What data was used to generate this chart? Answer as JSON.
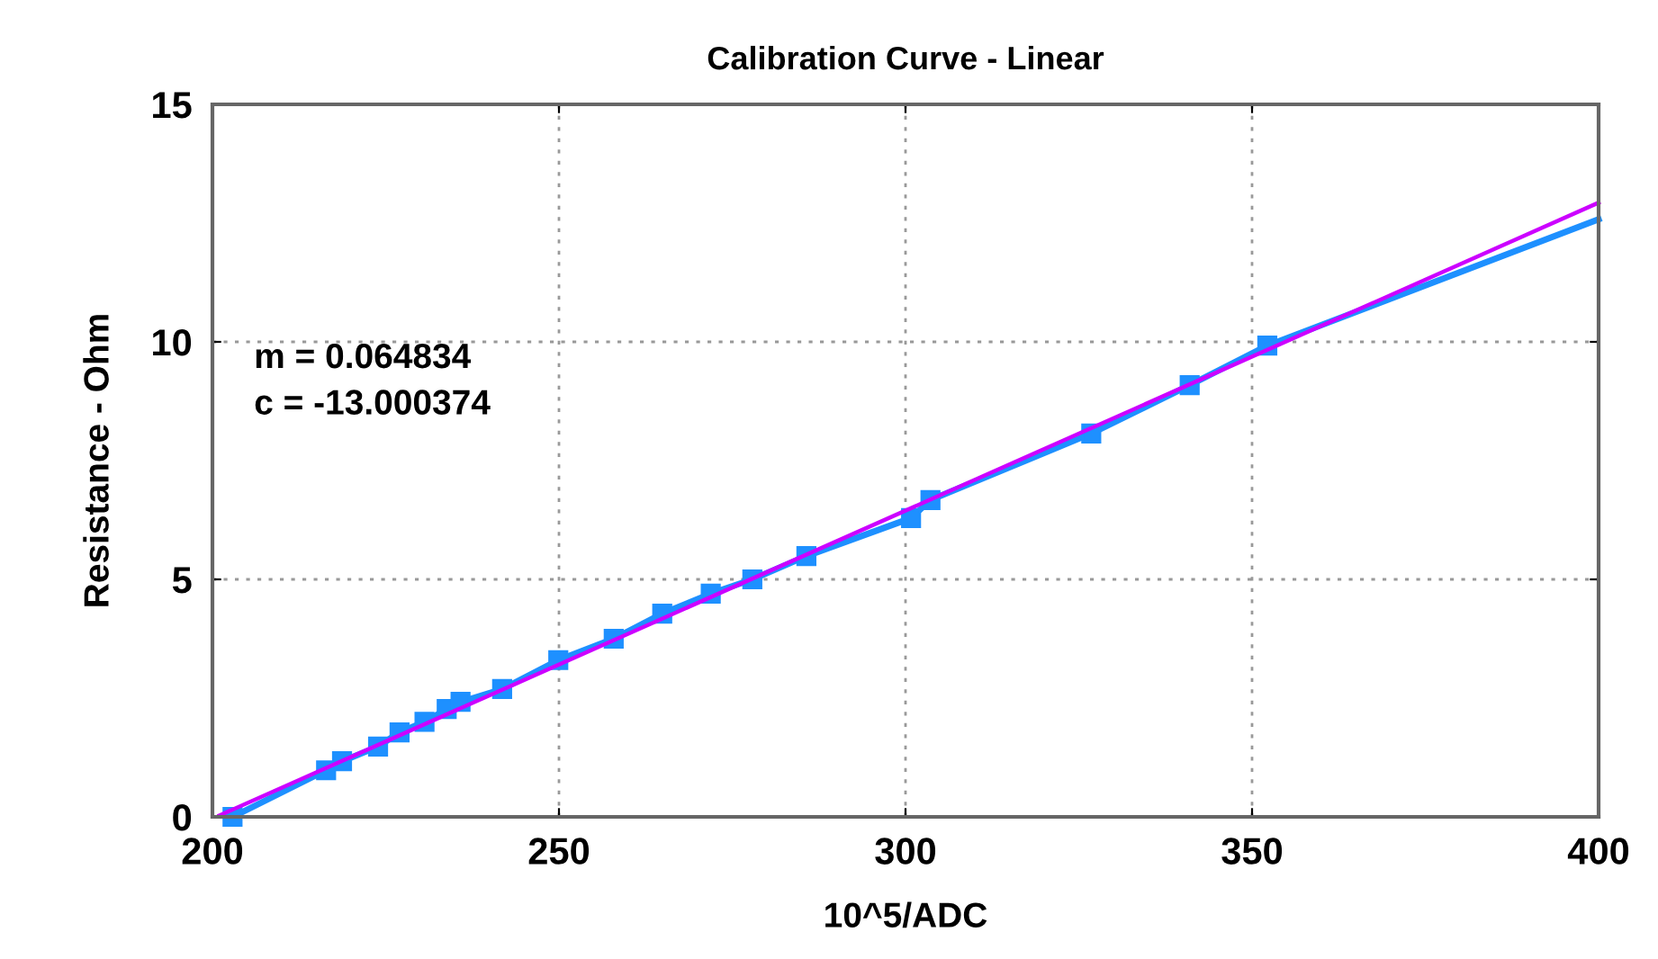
{
  "chart_data": {
    "type": "line",
    "title": "Calibration Curve - Linear",
    "xlabel": "10^5/ADC",
    "ylabel": "Resistance - Ohm",
    "xlim": [
      200,
      400
    ],
    "ylim": [
      0,
      15
    ],
    "xticks": [
      200,
      250,
      300,
      350,
      400
    ],
    "yticks": [
      0,
      5,
      10,
      15
    ],
    "grid": true,
    "legend": false,
    "annotations": [
      "m = 0.064834",
      "c = -13.000374"
    ],
    "series": [
      {
        "color": "#1e90ff",
        "marker": "square",
        "x": [
          202.9,
          216.4,
          218.7,
          223.9,
          227.0,
          230.6,
          233.8,
          235.8,
          241.8,
          249.9,
          257.9,
          264.9,
          271.9,
          277.9,
          285.7,
          300.8,
          303.6,
          326.8,
          341.0,
          352.2
        ],
        "values": [
          0.0,
          0.98,
          1.17,
          1.48,
          1.78,
          2.0,
          2.27,
          2.42,
          2.69,
          3.3,
          3.75,
          4.28,
          4.7,
          5.0,
          5.49,
          6.29,
          6.67,
          8.07,
          9.09,
          9.92
        ]
      },
      {
        "color": "#1e90ff",
        "marker": "none",
        "x": [
          352.2,
          400
        ],
        "values": [
          9.92,
          12.58
        ]
      },
      {
        "color": "#cc00ff",
        "marker": "none",
        "x": [
          201,
          400
        ],
        "values": [
          0.03,
          12.93
        ]
      }
    ]
  }
}
